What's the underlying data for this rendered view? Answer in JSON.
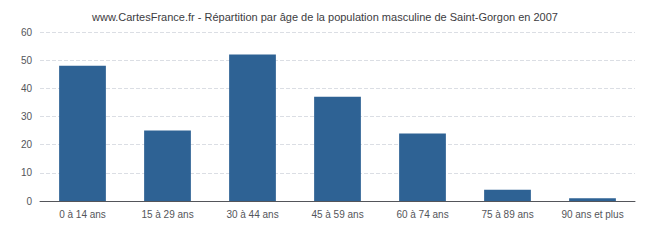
{
  "chart_data": {
    "type": "bar",
    "title": "www.CartesFrance.fr - Répartition par âge de la population masculine de Saint-Gorgon en 2007",
    "categories": [
      "0 à 14 ans",
      "15 à 29 ans",
      "30 à 44 ans",
      "45 à 59 ans",
      "60 à 74 ans",
      "75 à 89 ans",
      "90 ans et plus"
    ],
    "values": [
      48,
      25,
      52,
      37,
      24,
      4,
      1
    ],
    "color": "#2e6294",
    "ylim": [
      0,
      60
    ],
    "yticks": [
      0,
      10,
      20,
      30,
      40,
      50,
      60
    ],
    "grid": true
  }
}
